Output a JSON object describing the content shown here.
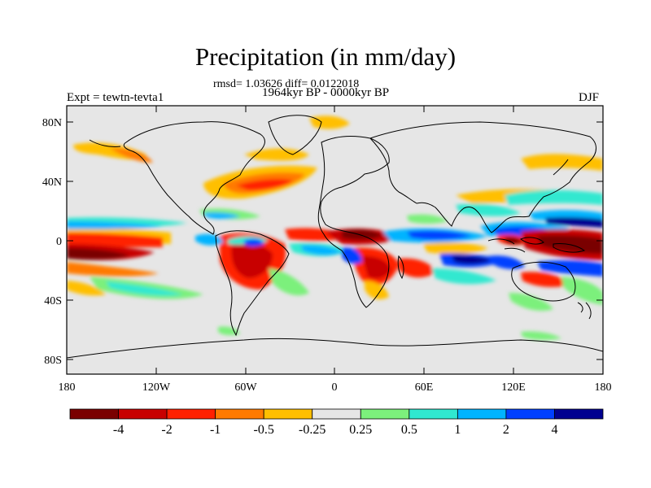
{
  "header": {
    "title": "Precipitation (in mm/day)",
    "stats": "rmsd= 1.03626 diff= 0.0122018",
    "period": "1964kyr BP - 0000kyr BP",
    "experiment": "Expt = tewtn-tevta1",
    "season": "DJF"
  },
  "axes": {
    "lat_labels": [
      "80N",
      "40N",
      "0",
      "40S",
      "80S"
    ],
    "lon_labels": [
      "180",
      "120W",
      "60W",
      "0",
      "60E",
      "120E",
      "180"
    ]
  },
  "colorbar": {
    "labels": [
      "-4",
      "-2",
      "-1",
      "-0.5",
      "-0.25",
      "0.25",
      "0.5",
      "1",
      "2",
      "4"
    ],
    "colors": [
      "#7a0000",
      "#c80000",
      "#ff2000",
      "#ff7a00",
      "#ffbf00",
      "#e6e6e6",
      "#7cf07c",
      "#30e8d0",
      "#00b4ff",
      "#0040ff",
      "#000090"
    ]
  },
  "colors": {
    "land_background": "#e6e6e6",
    "coastline": "#000000"
  }
}
